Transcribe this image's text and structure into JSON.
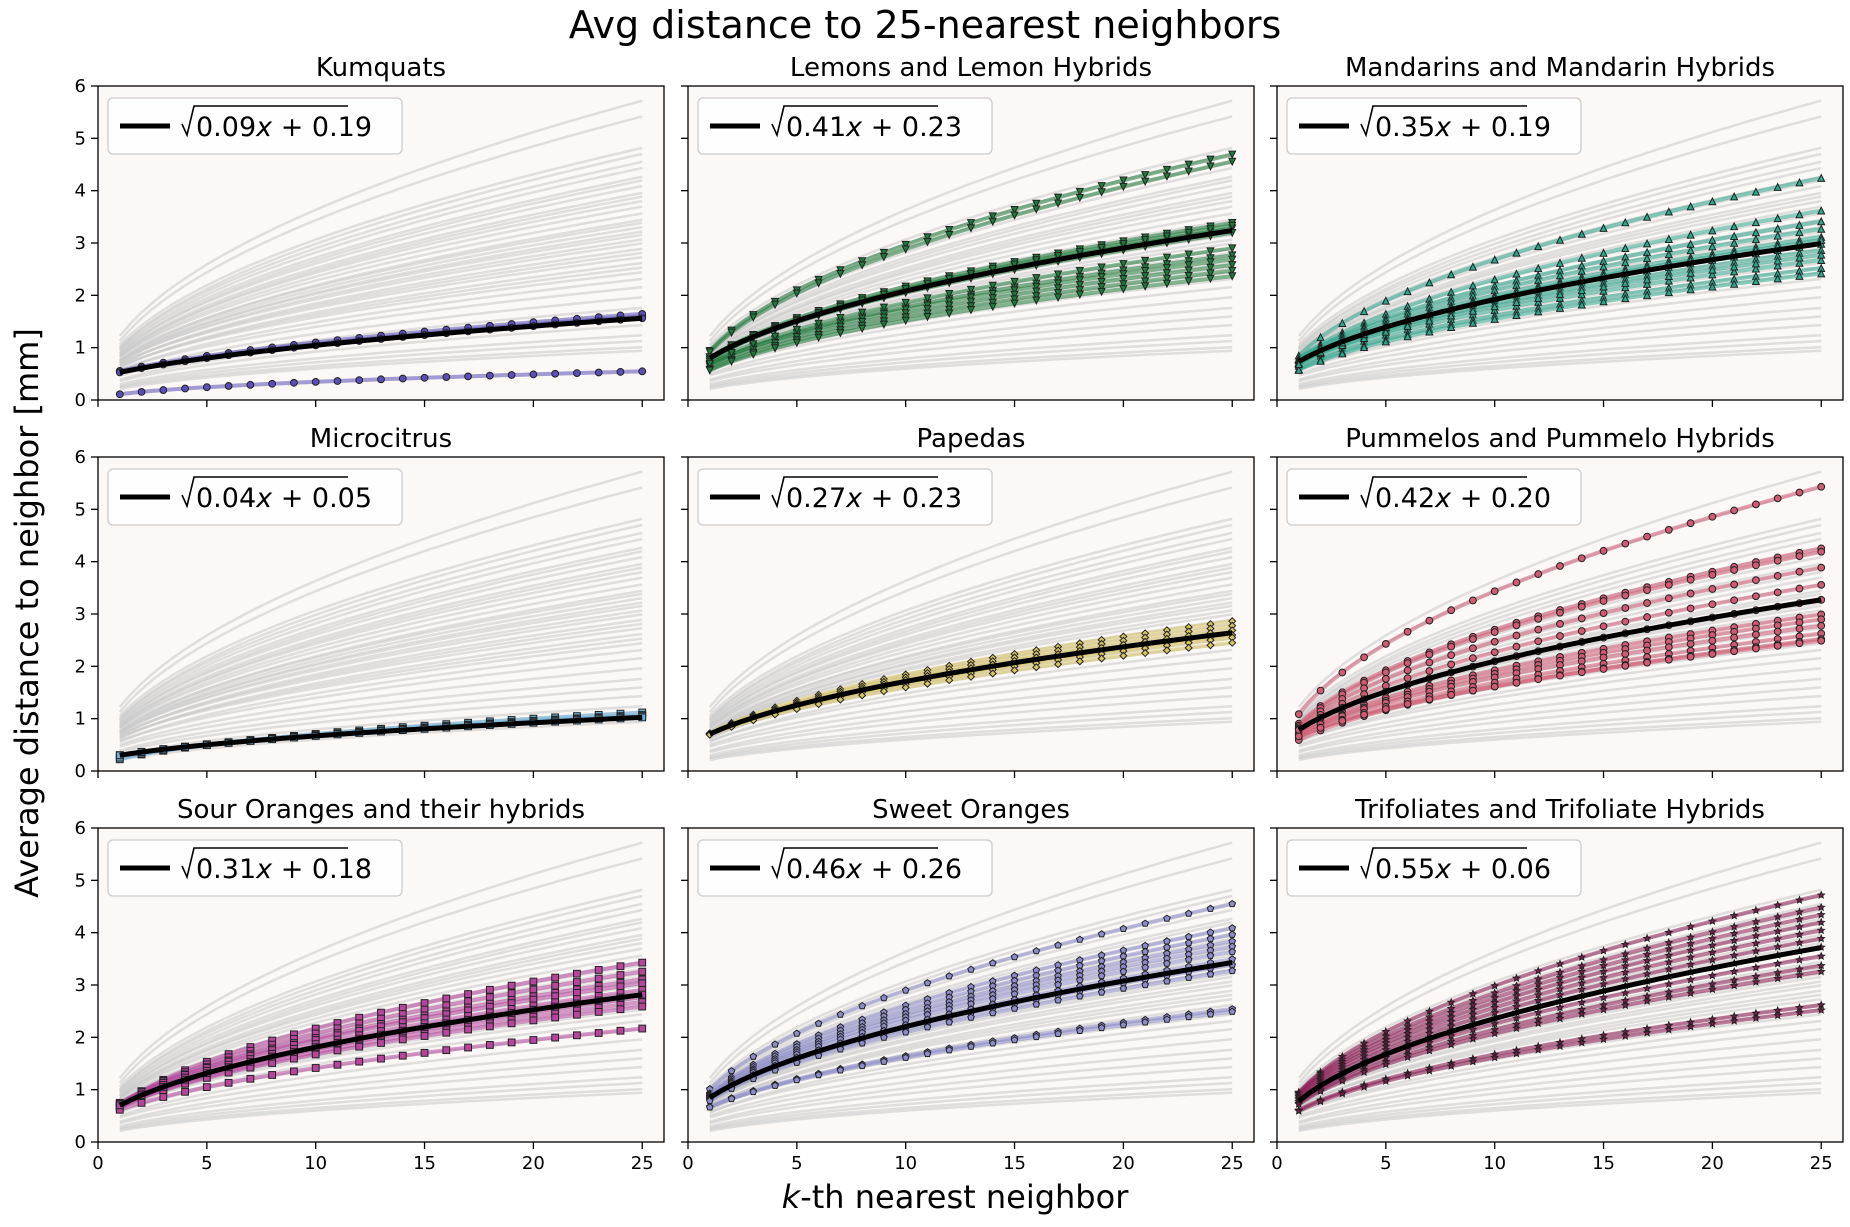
{
  "figure": {
    "title": "Avg distance to 25-nearest neighbors",
    "xlabel": "k-th nearest neighbor",
    "ylabel": "Average distance to neighbor [mm]"
  },
  "chart_data": {
    "type": "line",
    "xlim": [
      0,
      26
    ],
    "ylim": [
      0,
      6
    ],
    "xticks": [
      0,
      5,
      10,
      15,
      20,
      25
    ],
    "yticks": [
      0,
      1,
      2,
      3,
      4,
      5,
      6
    ],
    "grid": false,
    "legend_position": "top-left",
    "background_color": "#fbf8f6",
    "background_curve_color": "#c8c8c8",
    "fit_line_color": "#000000",
    "panels": [
      {
        "title": "Kumquats",
        "fit_label": "0.09x + 0.19",
        "a": 0.09,
        "b": 0.19,
        "color": "#5a4fb5",
        "marker": "circle",
        "curves": [
          [
            0.012,
            0.0
          ],
          [
            0.095,
            0.19
          ],
          [
            0.1,
            0.21
          ],
          [
            0.09,
            0.19
          ]
        ]
      },
      {
        "title": "Lemons and Lemon Hybrids",
        "fit_label": "0.41x + 0.23",
        "a": 0.41,
        "b": 0.23,
        "color": "#1f7a3a",
        "marker": "triangle-down",
        "curves": [
          [
            0.88,
            0.0
          ],
          [
            0.83,
            0.0
          ],
          [
            0.45,
            0.2
          ],
          [
            0.42,
            0.25
          ],
          [
            0.4,
            0.2
          ],
          [
            0.44,
            0.1
          ],
          [
            0.3,
            0.15
          ],
          [
            0.28,
            0.2
          ],
          [
            0.26,
            0.15
          ],
          [
            0.24,
            0.1
          ],
          [
            0.22,
            0.1
          ],
          [
            0.33,
            0.15
          ]
        ]
      },
      {
        "title": "Mandarins and Mandarin Hybrids",
        "fit_label": "0.35x + 0.19",
        "a": 0.35,
        "b": 0.19,
        "color": "#2ea58c",
        "marker": "triangle-up",
        "curves": [
          [
            0.72,
            0.0
          ],
          [
            0.52,
            0.1
          ],
          [
            0.46,
            0.15
          ],
          [
            0.42,
            0.2
          ],
          [
            0.38,
            0.2
          ],
          [
            0.35,
            0.15
          ],
          [
            0.32,
            0.2
          ],
          [
            0.28,
            0.15
          ],
          [
            0.25,
            0.1
          ],
          [
            0.23,
            0.1
          ],
          [
            0.3,
            0.2
          ],
          [
            0.37,
            0.1
          ]
        ]
      },
      {
        "title": "Microcitrus",
        "fit_label": "0.04x + 0.05",
        "a": 0.04,
        "b": 0.05,
        "color": "#6aaed6",
        "marker": "square",
        "curves": [
          [
            0.05,
            0.0
          ],
          [
            0.045,
            0.02
          ],
          [
            0.042,
            0.05
          ],
          [
            0.04,
            0.05
          ]
        ]
      },
      {
        "title": "Papedas",
        "fit_label": "0.27x + 0.23",
        "a": 0.27,
        "b": 0.23,
        "color": "#d9c566",
        "marker": "diamond",
        "curves": [
          [
            0.32,
            0.2
          ],
          [
            0.3,
            0.2
          ],
          [
            0.28,
            0.22
          ],
          [
            0.26,
            0.25
          ],
          [
            0.25,
            0.25
          ],
          [
            0.23,
            0.25
          ]
        ]
      },
      {
        "title": "Pummelos and Pummelo Hybrids",
        "fit_label": "0.42x + 0.20",
        "a": 0.42,
        "b": 0.2,
        "color": "#cf5b72",
        "marker": "circle",
        "curves": [
          [
            1.18,
            0.0
          ],
          [
            0.72,
            0.1
          ],
          [
            0.7,
            0.05
          ],
          [
            0.6,
            0.1
          ],
          [
            0.5,
            0.15
          ],
          [
            0.35,
            0.2
          ],
          [
            0.33,
            0.15
          ],
          [
            0.3,
            0.2
          ],
          [
            0.27,
            0.15
          ],
          [
            0.25,
            0.1
          ],
          [
            0.24,
            0.2
          ],
          [
            0.42,
            0.2
          ]
        ]
      },
      {
        "title": "Sour Oranges and their hybrids",
        "fit_label": "0.31x + 0.18",
        "a": 0.31,
        "b": 0.18,
        "color": "#b5469c",
        "marker": "square",
        "curves": [
          [
            0.47,
            0.0
          ],
          [
            0.42,
            0.1
          ],
          [
            0.38,
            0.15
          ],
          [
            0.36,
            0.2
          ],
          [
            0.33,
            0.2
          ],
          [
            0.3,
            0.15
          ],
          [
            0.28,
            0.15
          ],
          [
            0.26,
            0.2
          ],
          [
            0.18,
            0.2
          ],
          [
            0.31,
            0.18
          ]
        ]
      },
      {
        "title": "Sweet Oranges",
        "fit_label": "0.46x + 0.26",
        "a": 0.46,
        "b": 0.26,
        "color": "#8c8cc8",
        "marker": "pentagon",
        "curves": [
          [
            0.82,
            0.2
          ],
          [
            0.66,
            0.2
          ],
          [
            0.62,
            0.2
          ],
          [
            0.58,
            0.2
          ],
          [
            0.55,
            0.2
          ],
          [
            0.52,
            0.2
          ],
          [
            0.48,
            0.2
          ],
          [
            0.45,
            0.2
          ],
          [
            0.42,
            0.2
          ],
          [
            0.25,
            0.2
          ],
          [
            0.24,
            0.2
          ]
        ]
      },
      {
        "title": "Trifoliates and Trifoliate Hybrids",
        "fit_label": "0.55x + 0.06",
        "a": 0.55,
        "b": 0.06,
        "color": "#8a1a52",
        "marker": "star",
        "curves": [
          [
            0.89,
            0.0
          ],
          [
            0.8,
            0.1
          ],
          [
            0.75,
            0.1
          ],
          [
            0.7,
            0.1
          ],
          [
            0.65,
            0.1
          ],
          [
            0.6,
            0.1
          ],
          [
            0.55,
            0.1
          ],
          [
            0.5,
            0.1
          ],
          [
            0.45,
            0.1
          ],
          [
            0.42,
            0.1
          ],
          [
            0.27,
            0.1
          ],
          [
            0.25,
            0.1
          ]
        ]
      }
    ],
    "background_curves": [
      [
        1.3,
        0.2
      ],
      [
        1.17,
        0.1
      ],
      [
        0.92,
        0.2
      ],
      [
        0.88,
        0.1
      ],
      [
        0.82,
        0.2
      ],
      [
        0.78,
        0.15
      ],
      [
        0.72,
        0.2
      ],
      [
        0.7,
        0.1
      ],
      [
        0.66,
        0.2
      ],
      [
        0.62,
        0.15
      ],
      [
        0.6,
        0.1
      ],
      [
        0.57,
        0.2
      ],
      [
        0.54,
        0.15
      ],
      [
        0.5,
        0.2
      ],
      [
        0.47,
        0.1
      ],
      [
        0.45,
        0.2
      ],
      [
        0.43,
        0.15
      ],
      [
        0.41,
        0.1
      ],
      [
        0.39,
        0.2
      ],
      [
        0.37,
        0.15
      ],
      [
        0.35,
        0.2
      ],
      [
        0.33,
        0.1
      ],
      [
        0.31,
        0.15
      ],
      [
        0.29,
        0.2
      ],
      [
        0.27,
        0.1
      ],
      [
        0.25,
        0.15
      ],
      [
        0.23,
        0.2
      ],
      [
        0.21,
        0.1
      ],
      [
        0.18,
        0.15
      ],
      [
        0.15,
        0.1
      ],
      [
        0.12,
        0.1
      ],
      [
        0.1,
        0.05
      ],
      [
        0.08,
        0.05
      ],
      [
        0.06,
        0.03
      ],
      [
        0.05,
        0.02
      ],
      [
        0.04,
        0.02
      ],
      [
        0.035,
        0.01
      ]
    ]
  }
}
